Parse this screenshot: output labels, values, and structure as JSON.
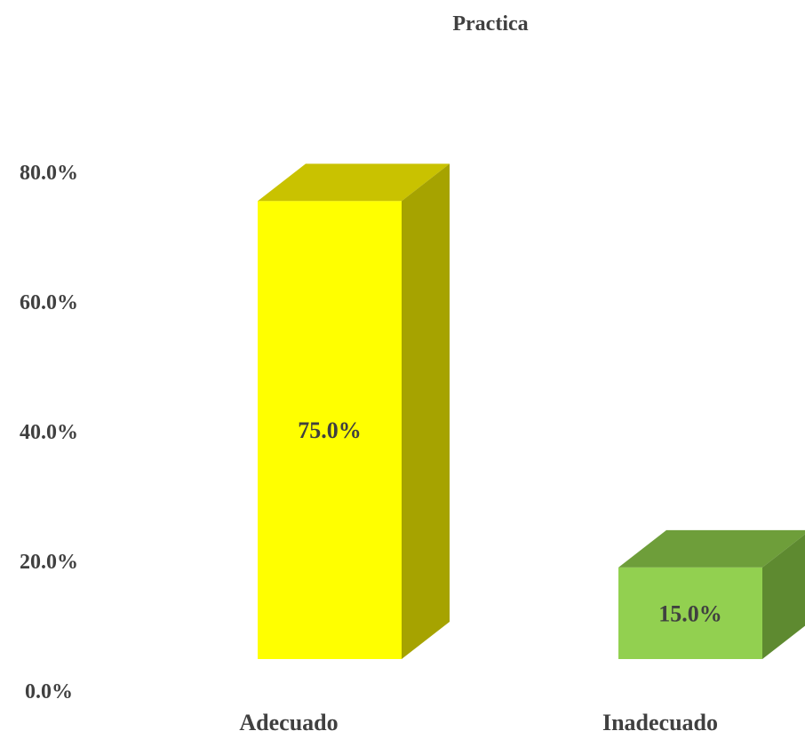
{
  "chart_data": {
    "type": "bar",
    "title": "Practica",
    "categories": [
      "Adecuado",
      "Inadecuado"
    ],
    "values": [
      75.0,
      15.0
    ],
    "data_labels": [
      "75.0%",
      "15.0%"
    ],
    "ylim": [
      0,
      80
    ],
    "yticks": [
      0,
      20,
      40,
      60,
      80
    ],
    "ytick_labels": [
      "0.0%",
      "20.0%",
      "40.0%",
      "60.0%",
      "80.0%"
    ],
    "grid": false,
    "legend": "none",
    "style": "3d-column",
    "colors": [
      {
        "front": "#FFFF00",
        "top": "#C9C200",
        "side": "#A6A300"
      },
      {
        "front": "#92D050",
        "top": "#6E9E3A",
        "side": "#5E8A30"
      }
    ]
  }
}
